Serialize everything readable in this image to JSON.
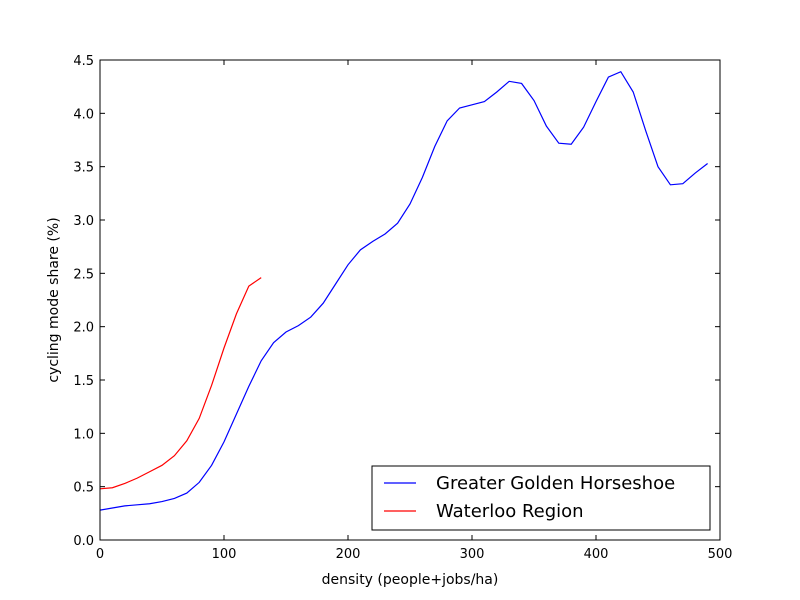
{
  "chart_data": {
    "type": "line",
    "title": "",
    "xlabel": "density (people+jobs/ha)",
    "ylabel": "cycling mode share (%)",
    "xlim": [
      0,
      500
    ],
    "ylim": [
      0,
      4.5
    ],
    "x_ticks": [
      0,
      100,
      200,
      300,
      400,
      500
    ],
    "y_ticks": [
      0.0,
      0.5,
      1.0,
      1.5,
      2.0,
      2.5,
      3.0,
      3.5,
      4.0,
      4.5
    ],
    "x_tick_labels": [
      "0",
      "100",
      "200",
      "300",
      "400",
      "500"
    ],
    "y_tick_labels": [
      "0.0",
      "0.5",
      "1.0",
      "1.5",
      "2.0",
      "2.5",
      "3.0",
      "3.5",
      "4.0",
      "4.5"
    ],
    "grid": false,
    "legend_position": "lower-right",
    "series": [
      {
        "name": "Greater Golden Horseshoe",
        "color": "#0000ff",
        "x": [
          0,
          10,
          20,
          30,
          40,
          50,
          60,
          70,
          80,
          90,
          100,
          110,
          120,
          130,
          140,
          150,
          160,
          170,
          180,
          190,
          200,
          210,
          220,
          230,
          240,
          250,
          260,
          270,
          280,
          290,
          300,
          310,
          320,
          330,
          340,
          350,
          360,
          370,
          380,
          390,
          400,
          410,
          420,
          430,
          440,
          450,
          460,
          470,
          480,
          490
        ],
        "y": [
          0.28,
          0.3,
          0.32,
          0.33,
          0.34,
          0.36,
          0.39,
          0.44,
          0.54,
          0.7,
          0.92,
          1.18,
          1.44,
          1.68,
          1.85,
          1.95,
          2.01,
          2.09,
          2.22,
          2.4,
          2.58,
          2.72,
          2.8,
          2.87,
          2.97,
          3.15,
          3.4,
          3.69,
          3.93,
          4.05,
          4.08,
          4.11,
          4.2,
          4.3,
          4.28,
          4.12,
          3.88,
          3.72,
          3.71,
          3.87,
          4.11,
          4.34,
          4.39,
          4.2,
          3.84,
          3.5,
          3.33,
          3.34,
          3.44,
          3.53
        ]
      },
      {
        "name": "Waterloo Region",
        "color": "#ff0000",
        "x": [
          0,
          10,
          20,
          30,
          40,
          50,
          60,
          70,
          80,
          90,
          100,
          110,
          120,
          130
        ],
        "y": [
          0.48,
          0.49,
          0.53,
          0.58,
          0.64,
          0.7,
          0.79,
          0.93,
          1.14,
          1.45,
          1.8,
          2.12,
          2.38,
          2.46
        ]
      }
    ]
  }
}
